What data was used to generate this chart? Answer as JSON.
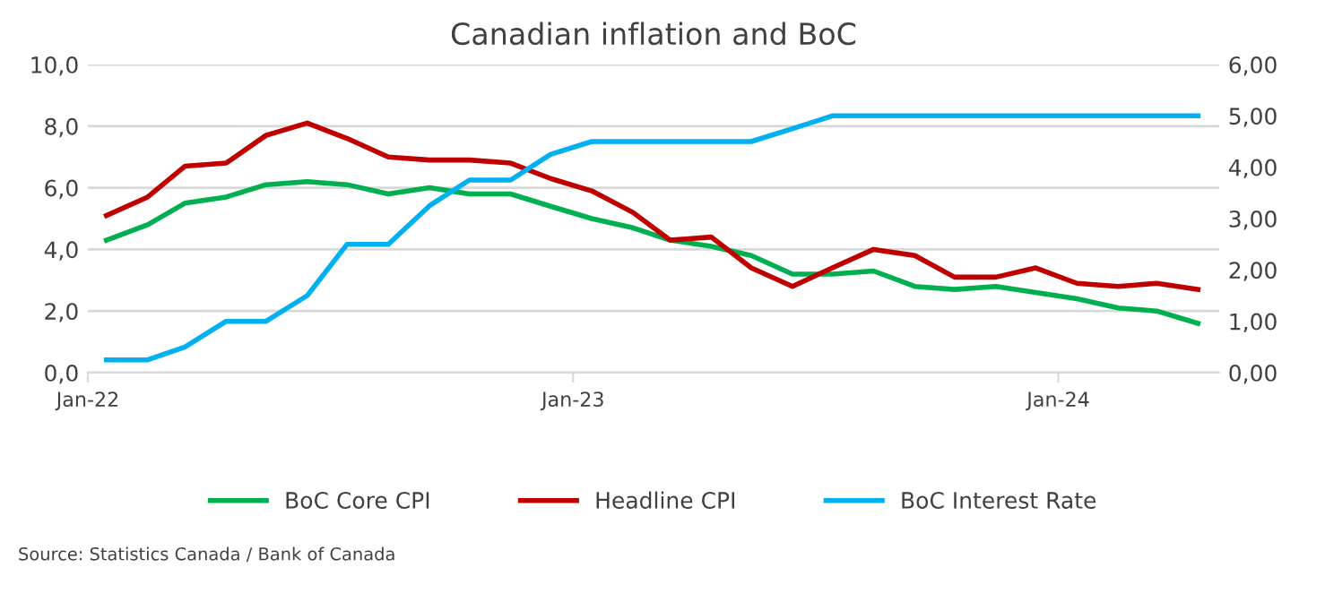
{
  "chart_data": {
    "type": "line",
    "title": "Canadian inflation and BoC",
    "x": [
      "2022-01-15",
      "2022-02-15",
      "2022-03-15",
      "2022-04-15",
      "2022-05-15",
      "2022-06-15",
      "2022-07-15",
      "2022-08-15",
      "2022-09-15",
      "2022-10-15",
      "2022-11-15",
      "2022-12-15",
      "2023-01-15",
      "2023-02-15",
      "2023-03-15",
      "2023-04-15",
      "2023-05-15",
      "2023-06-15",
      "2023-07-15",
      "2023-08-15",
      "2023-09-15",
      "2023-10-15",
      "2023-11-15",
      "2023-12-15",
      "2024-01-15",
      "2024-02-15",
      "2024-03-15",
      "2024-04-15"
    ],
    "series": [
      {
        "name": "BoC Core CPI",
        "color": "#00b050",
        "values": [
          4.3,
          4.8,
          5.5,
          5.7,
          6.1,
          6.2,
          6.1,
          5.8,
          6.0,
          5.8,
          5.8,
          5.4,
          5.0,
          4.7,
          4.3,
          4.1,
          3.8,
          3.2,
          3.2,
          3.3,
          2.8,
          2.7,
          2.8,
          2.6,
          2.4,
          2.1,
          2.0,
          1.6
        ]
      },
      {
        "name": "Headline CPI",
        "color": "#c00000",
        "values": [
          5.1,
          5.7,
          6.7,
          6.8,
          7.7,
          8.1,
          7.6,
          7.0,
          6.9,
          6.9,
          6.8,
          6.3,
          5.9,
          5.2,
          4.3,
          4.4,
          3.4,
          2.8,
          3.4,
          4.0,
          3.8,
          3.1,
          3.1,
          3.4,
          2.9,
          2.8,
          2.9,
          2.7
        ]
      },
      {
        "name": "BoC Interest Rate",
        "color": "#00b0f0",
        "axis": "y2",
        "values": [
          0.25,
          0.25,
          0.5,
          1.0,
          1.0,
          1.5,
          2.5,
          2.5,
          3.25,
          3.75,
          3.75,
          4.25,
          4.5,
          4.5,
          4.5,
          4.5,
          4.5,
          4.75,
          5.0,
          5.0,
          5.0,
          5.0,
          5.0,
          5.0,
          5.0,
          5.0,
          5.0,
          5.0
        ]
      }
    ],
    "xlim": [
      "2022-01-01",
      "2024-05-01"
    ],
    "xticks": [
      {
        "value": "2022-01-01",
        "label": "Jan-22"
      },
      {
        "value": "2023-01-01",
        "label": "Jan-23"
      },
      {
        "value": "2024-01-01",
        "label": "Jan-24"
      }
    ],
    "ylim": [
      0,
      10
    ],
    "yticks": [
      {
        "value": 0,
        "label": "0,0"
      },
      {
        "value": 2,
        "label": "2,0"
      },
      {
        "value": 4,
        "label": "4,0"
      },
      {
        "value": 6,
        "label": "6,0"
      },
      {
        "value": 8,
        "label": "8,0"
      },
      {
        "value": 10,
        "label": "10,0"
      }
    ],
    "y2lim": [
      0,
      6
    ],
    "y2ticks": [
      {
        "value": 0,
        "label": "0,00"
      },
      {
        "value": 1,
        "label": "1,00"
      },
      {
        "value": 2,
        "label": "2,00"
      },
      {
        "value": 3,
        "label": "3,00"
      },
      {
        "value": 4,
        "label": "4,00"
      },
      {
        "value": 5,
        "label": "5,00"
      },
      {
        "value": 6,
        "label": "6,00"
      }
    ],
    "grid": "y",
    "legend": "bottom",
    "line_style": "solid",
    "marker": "none",
    "annotations": [
      "Source: Statistics Canada / Bank of Canada"
    ]
  }
}
